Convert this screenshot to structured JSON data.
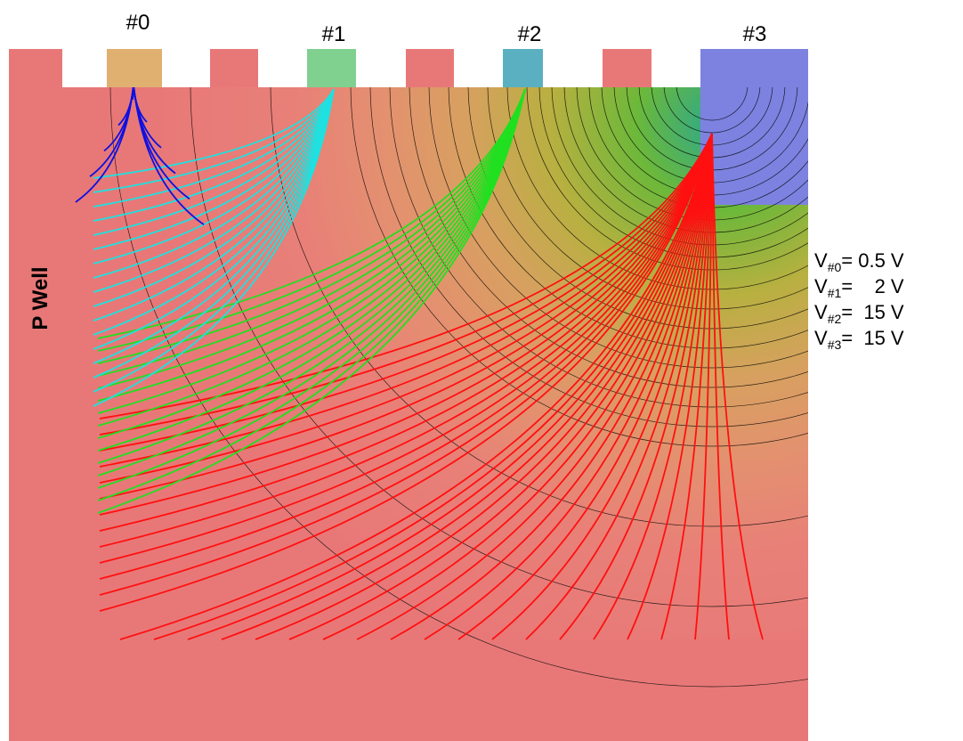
{
  "electrodes": [
    "#0",
    "#1",
    "#2",
    "#3"
  ],
  "well_label": "P Well",
  "voltages": [
    {
      "symbol": "V",
      "subscript": "#0",
      "value": "= 0.5 V"
    },
    {
      "symbol": "V",
      "subscript": "#1",
      "value": "=    2 V"
    },
    {
      "symbol": "V",
      "subscript": "#2",
      "value": "=  15 V"
    },
    {
      "symbol": "V",
      "subscript": "#3",
      "value": "=  15 V"
    }
  ]
}
